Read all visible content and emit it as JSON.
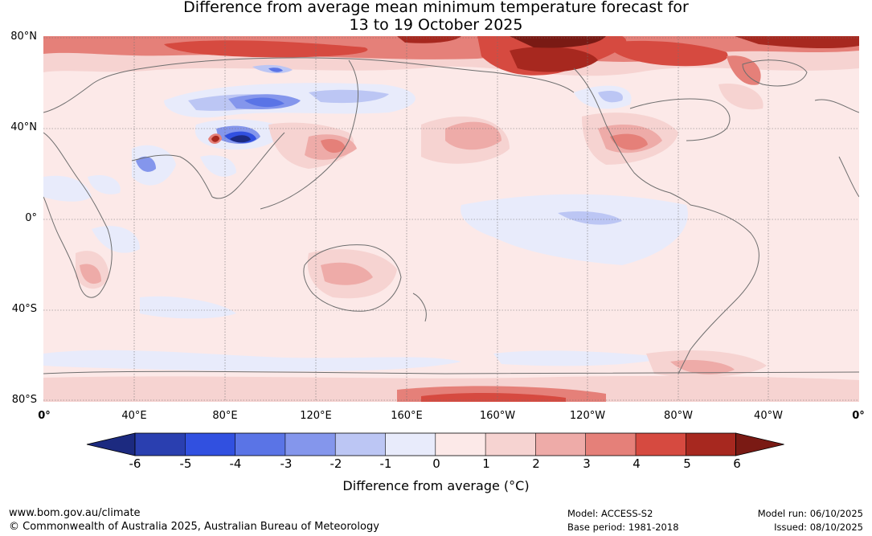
{
  "title_line1": "Difference from average mean minimum temperature forecast for",
  "title_line2": "13 to 19 October 2025",
  "lat_labels": [
    "80°N",
    "40°N",
    "0°",
    "40°S",
    "80°S"
  ],
  "lon_labels": [
    "0°",
    "40°E",
    "80°E",
    "120°E",
    "160°E",
    "160°W",
    "120°W",
    "80°W",
    "40°W",
    "0°"
  ],
  "colorbar": {
    "ticks": [
      "-6",
      "-5",
      "-4",
      "-3",
      "-2",
      "-1",
      "0",
      "1",
      "2",
      "3",
      "4",
      "5",
      "6"
    ],
    "colors": [
      "#1c2a80",
      "#2a3fb0",
      "#3150e0",
      "#5a74e6",
      "#8496ec",
      "#bcc6f4",
      "#e8ebfb",
      "#fce9e8",
      "#f6d3d1",
      "#eeaba8",
      "#e58079",
      "#d64a40",
      "#a7281f",
      "#7a1a14"
    ],
    "label": "Difference from average (°C)"
  },
  "footer": {
    "url": "www.bom.gov.au/climate",
    "copyright": "© Commonwealth of Australia 2025, Australian Bureau of Meteorology",
    "model": "Model: ACCESS-S2",
    "base_period": "Base period: 1981-2018",
    "model_run": "Model run: 06/10/2025",
    "issued": "Issued: 08/10/2025"
  },
  "colors": {
    "coast": "#6e6e6e",
    "grid": "#707070",
    "background_anomaly": "#fce9e8"
  }
}
